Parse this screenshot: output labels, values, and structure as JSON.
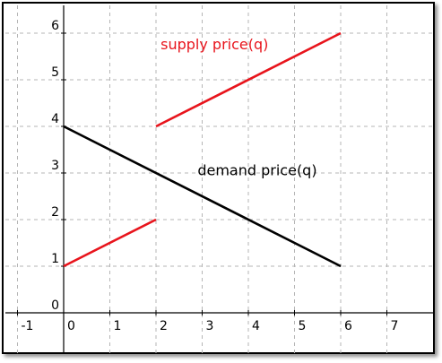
{
  "chart_data": {
    "type": "line",
    "title": "",
    "xlabel": "",
    "ylabel": "",
    "xlim": [
      -1.2,
      7.8
    ],
    "ylim": [
      -0.5,
      6.5
    ],
    "x_ticks": [
      "-1",
      "0",
      "1",
      "2",
      "3",
      "4",
      "5",
      "6",
      "7"
    ],
    "y_ticks": [
      "0",
      "1",
      "2",
      "3",
      "4",
      "5",
      "6"
    ],
    "grid": true,
    "series": [
      {
        "name": "supply price(q)",
        "color": "#e8141c",
        "segments": [
          [
            [
              0,
              1
            ],
            [
              2,
              2
            ]
          ],
          [
            [
              2,
              4
            ],
            [
              6,
              6
            ]
          ]
        ]
      },
      {
        "name": "demand price(q)",
        "color": "#000000",
        "segments": [
          [
            [
              0,
              4
            ],
            [
              6,
              1
            ]
          ]
        ]
      }
    ],
    "annotations": [
      {
        "text": "supply price(q)",
        "x": 2.1,
        "y": 5.65,
        "color": "#e8141c"
      },
      {
        "text": "demand price(q)",
        "x": 2.9,
        "y": 2.95,
        "color": "#000000"
      }
    ]
  }
}
